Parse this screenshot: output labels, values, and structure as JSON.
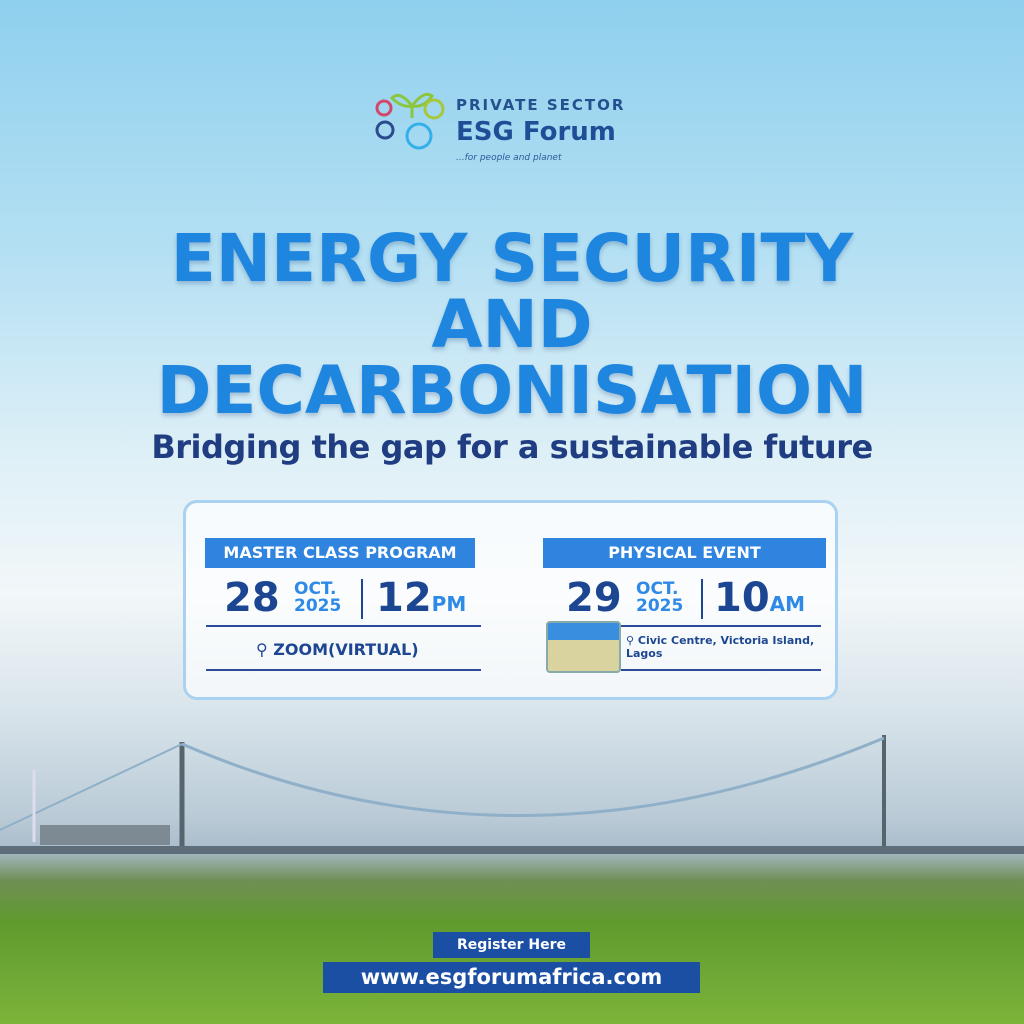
{
  "logo": {
    "line1": "PRIVATE SECTOR",
    "line2": "ESG Forum",
    "tagline": "...for people and planet"
  },
  "title": {
    "line1": "ENERGY SECURITY",
    "line2": "AND",
    "line3": "DECARBONISATION"
  },
  "subtitle": "Bridging the gap for a sustainable future",
  "events": [
    {
      "label": "MASTER CLASS PROGRAM",
      "day": "28",
      "month": "OCT.",
      "year": "2025",
      "time": "12",
      "ampm": "PM",
      "location": "ZOOM(VIRTUAL)"
    },
    {
      "label": "PHYSICAL EVENT",
      "day": "29",
      "month": "OCT.",
      "year": "2025",
      "time": "10",
      "ampm": "AM",
      "location": "Civic Centre, Victoria Island, Lagos"
    }
  ],
  "cta": {
    "register": "Register Here",
    "url": "www.esgforumafrica.com"
  },
  "colors": {
    "title": "#1f86e0",
    "navy": "#1d4692",
    "band": "#2e84de",
    "button": "#1b4fa3"
  }
}
